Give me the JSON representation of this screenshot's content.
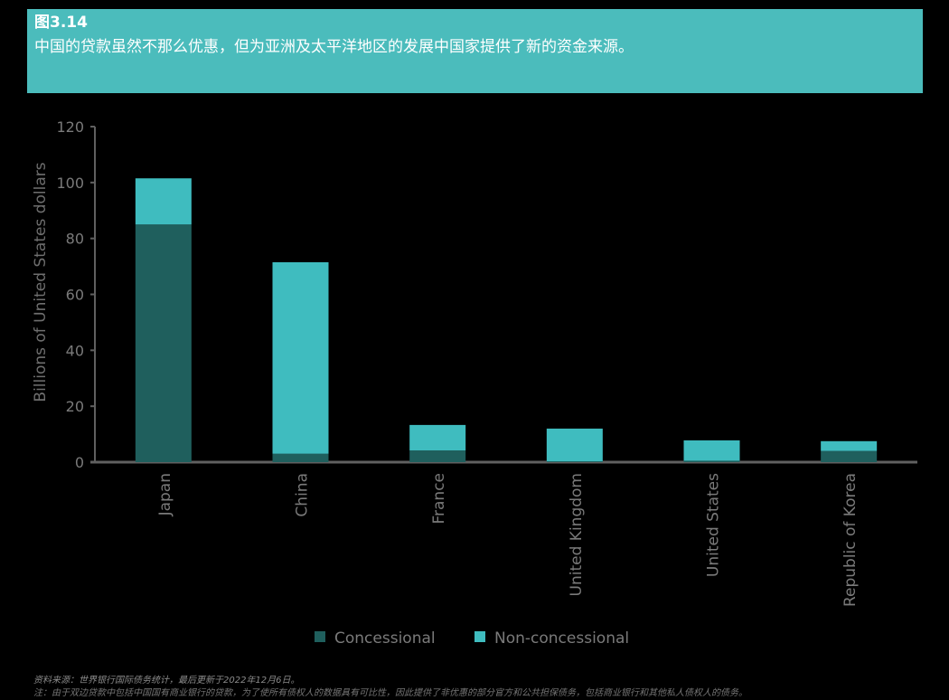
{
  "header": {
    "figure_number": "图3.14",
    "title": "中国的贷款虽然不那么优惠，但为亚洲及太平洋地区的发展中国家提供了新的资金来源。",
    "background_color": "#4bbcbc"
  },
  "chart_data": {
    "type": "bar",
    "stacked": true,
    "title": "中国的贷款虽然不那么优惠，但为亚洲及太平洋地区的发展中国家提供了新的资金来源。",
    "xlabel": "",
    "ylabel": "Billions of United States dollars",
    "ylim": [
      0,
      120
    ],
    "yticks": [
      0,
      20,
      40,
      60,
      80,
      100,
      120
    ],
    "grid": false,
    "legend_position": "bottom",
    "categories": [
      "Japan",
      "China",
      "France",
      "United Kingdom",
      "United States",
      "Republic of Korea"
    ],
    "series": [
      {
        "name": "Concessional",
        "color": "#1f5f5d",
        "values": [
          85,
          3,
          4.2,
          0.3,
          0.5,
          4
        ]
      },
      {
        "name": "Non-concessional",
        "color": "#3fbcbf",
        "values": [
          16.5,
          68.5,
          9.1,
          11.7,
          7.3,
          3.5
        ]
      }
    ],
    "totals": [
      101.5,
      71.5,
      13.3,
      12,
      7.8,
      7.5
    ]
  },
  "legend": {
    "items": [
      {
        "label": "Concessional",
        "color": "#1f5f5d"
      },
      {
        "label": "Non-concessional",
        "color": "#3fbcbf"
      }
    ]
  },
  "footer": {
    "source": "资料来源：世界银行国际债务统计，最后更新于2022年12月6日。",
    "note": "注：由于双边贷款中包括中国国有商业银行的贷款，为了使所有债权人的数据具有可比性，因此提供了非优惠的部分官方和公共担保债务，包括商业银行和其他私人债权人的债务。"
  }
}
